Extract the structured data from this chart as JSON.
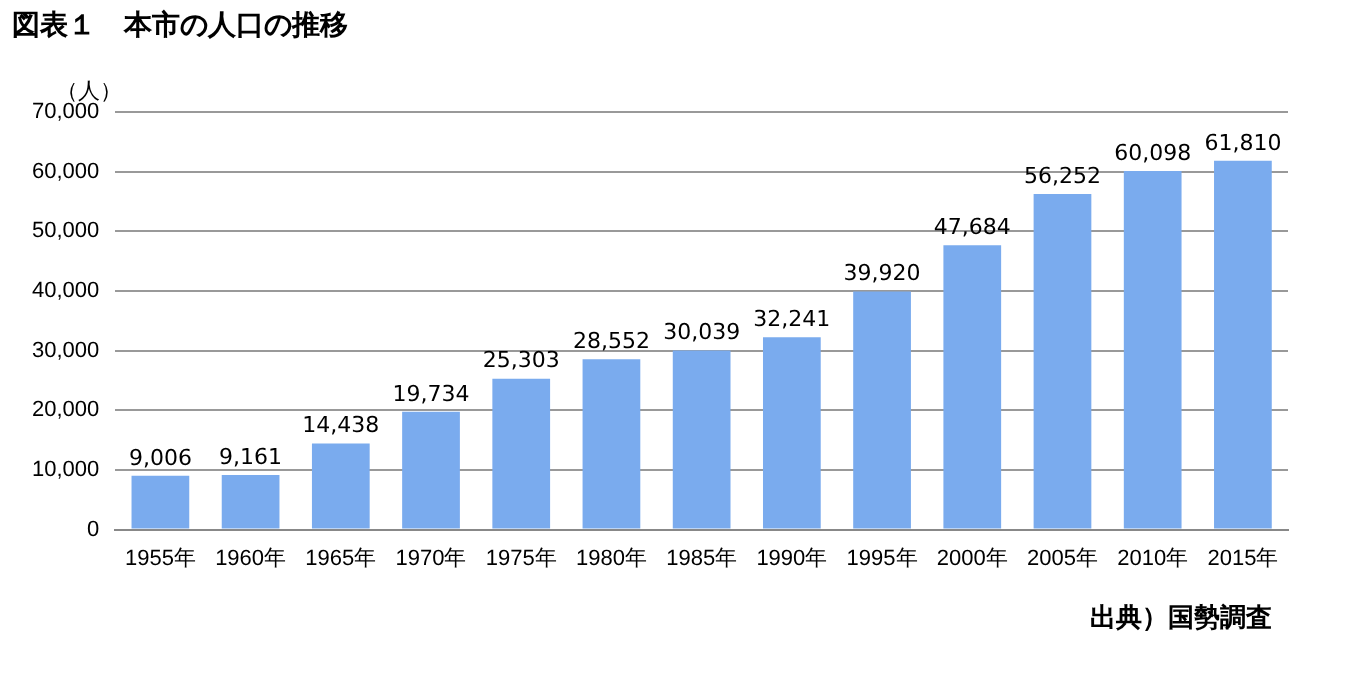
{
  "chart_data": {
    "type": "bar",
    "title": "図表１　本市の人口の推移",
    "ylabel": "（人）",
    "categories": [
      "1955年",
      "1960年",
      "1965年",
      "1970年",
      "1975年",
      "1980年",
      "1985年",
      "1990年",
      "1995年",
      "2000年",
      "2005年",
      "2010年",
      "2015年"
    ],
    "values": [
      9006,
      9161,
      14438,
      19734,
      25303,
      28552,
      30039,
      32241,
      39920,
      47684,
      56252,
      60098,
      61810
    ],
    "value_labels": [
      "9,006",
      "9,161",
      "14,438",
      "19,734",
      "25,303",
      "28,552",
      "30,039",
      "32,241",
      "39,920",
      "47,684",
      "56,252",
      "60,098",
      "61,810"
    ],
    "color": "#7aabee",
    "ylim": [
      0,
      70000
    ],
    "yticks": [
      {
        "value": 0,
        "label": "0"
      },
      {
        "value": 10000,
        "label": "10,000"
      },
      {
        "value": 20000,
        "label": "20,000"
      },
      {
        "value": 30000,
        "label": "30,000"
      },
      {
        "value": 40000,
        "label": "40,000"
      },
      {
        "value": 50000,
        "label": "50,000"
      },
      {
        "value": 60000,
        "label": "60,000"
      },
      {
        "value": 70000,
        "label": "70,000"
      }
    ],
    "grid": "y",
    "legend": false,
    "annotations": [
      "出典）国勢調査"
    ]
  }
}
